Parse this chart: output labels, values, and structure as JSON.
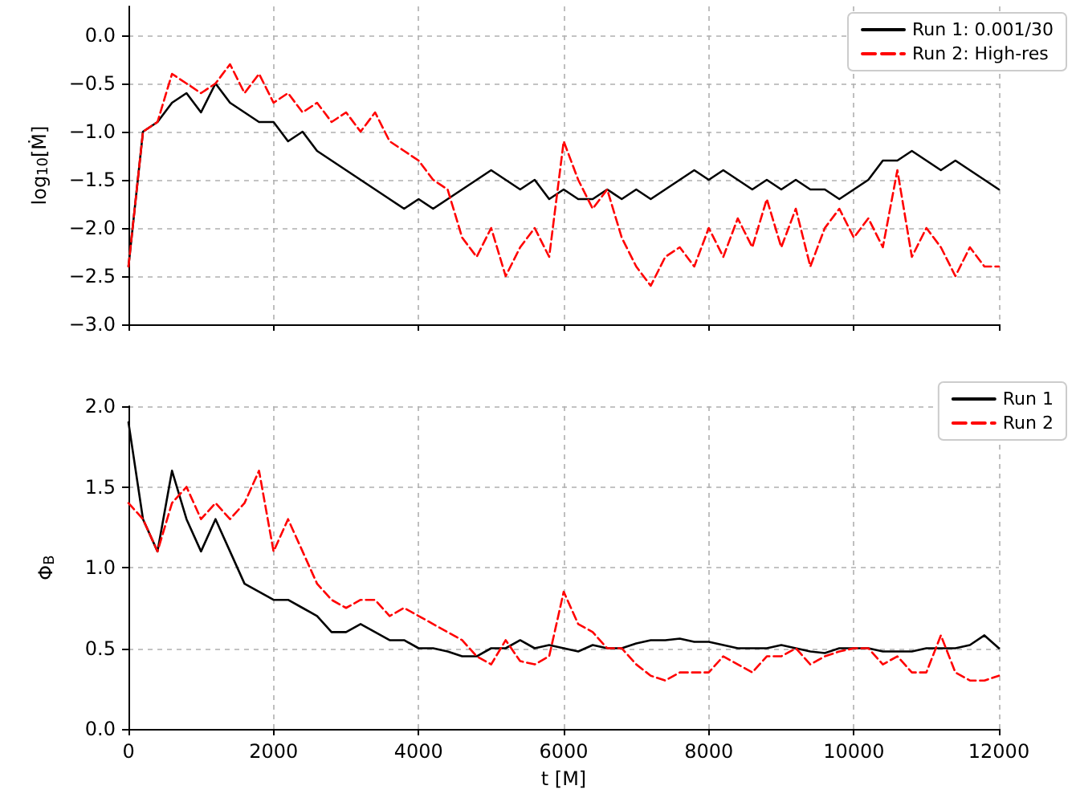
{
  "chart_data": [
    {
      "type": "line",
      "ylabel": "log$_{10}$[Ṁ]",
      "xlim": [
        0,
        12000
      ],
      "xticks": [
        0,
        2000,
        4000,
        6000,
        8000,
        10000,
        12000
      ],
      "ylim": [
        -3,
        0.3
      ],
      "yticks": [
        {
          "value": -3,
          "label": "−3.0"
        },
        {
          "value": -2.5,
          "label": "−2.5"
        },
        {
          "value": -2,
          "label": "−2.0"
        },
        {
          "value": -1.5,
          "label": "−1.5"
        },
        {
          "value": -1,
          "label": "−1.0"
        },
        {
          "value": -0.5,
          "label": "−0.5"
        },
        {
          "value": 0,
          "label": "0.0"
        }
      ],
      "tick_labels": "y",
      "grid": true,
      "legend": "top right",
      "marker": "none",
      "x": [
        0,
        200,
        400,
        600,
        800,
        1000,
        1200,
        1400,
        1600,
        1800,
        2000,
        2200,
        2400,
        2600,
        2800,
        3000,
        3200,
        3400,
        3600,
        3800,
        4000,
        4200,
        4400,
        4600,
        4800,
        5000,
        5200,
        5400,
        5600,
        5800,
        6000,
        6200,
        6400,
        6600,
        6800,
        7000,
        7200,
        7400,
        7600,
        7800,
        8000,
        8200,
        8400,
        8600,
        8800,
        9000,
        9200,
        9400,
        9600,
        9800,
        10000,
        10200,
        10400,
        10600,
        10800,
        11000,
        11200,
        11400,
        11600,
        11800,
        12000
      ],
      "series": [
        {
          "name": "Run 1: 0.001/30",
          "color": "#000000",
          "line_style": "solid",
          "values": [
            -2.4,
            -1.0,
            -0.9,
            -0.7,
            -0.6,
            -0.8,
            -0.5,
            -0.7,
            -0.8,
            -0.9,
            -0.9,
            -1.1,
            -1.0,
            -1.2,
            -1.3,
            -1.4,
            -1.5,
            -1.6,
            -1.7,
            -1.8,
            -1.7,
            -1.8,
            -1.7,
            -1.6,
            -1.5,
            -1.4,
            -1.5,
            -1.6,
            -1.5,
            -1.7,
            -1.6,
            -1.7,
            -1.7,
            -1.6,
            -1.7,
            -1.6,
            -1.7,
            -1.6,
            -1.5,
            -1.4,
            -1.5,
            -1.4,
            -1.5,
            -1.6,
            -1.5,
            -1.6,
            -1.5,
            -1.6,
            -1.6,
            -1.7,
            -1.6,
            -1.5,
            -1.3,
            -1.3,
            -1.2,
            -1.3,
            -1.4,
            -1.3,
            -1.4,
            -1.5,
            -1.6
          ]
        },
        {
          "name": "Run 2: High-res",
          "color": "#ff0000",
          "line_style": "dashed",
          "values": [
            -2.4,
            -1.0,
            -0.9,
            -0.4,
            -0.5,
            -0.6,
            -0.5,
            -0.3,
            -0.6,
            -0.4,
            -0.7,
            -0.6,
            -0.8,
            -0.7,
            -0.9,
            -0.8,
            -1.0,
            -0.8,
            -1.1,
            -1.2,
            -1.3,
            -1.5,
            -1.6,
            -2.1,
            -2.3,
            -2.0,
            -2.5,
            -2.2,
            -2.0,
            -2.3,
            -1.1,
            -1.5,
            -1.8,
            -1.6,
            -2.1,
            -2.4,
            -2.6,
            -2.3,
            -2.2,
            -2.4,
            -2.0,
            -2.3,
            -1.9,
            -2.2,
            -1.7,
            -2.2,
            -1.8,
            -2.4,
            -2.0,
            -1.8,
            -2.1,
            -1.9,
            -2.2,
            -1.4,
            -2.3,
            -2.0,
            -2.2,
            -2.5,
            -2.2,
            -2.4,
            -2.4
          ]
        }
      ]
    },
    {
      "type": "line",
      "xlabel": "t [M]",
      "ylabel": "Φ$_{B}$",
      "xlim": [
        0,
        12000
      ],
      "xticks": [
        0,
        2000,
        4000,
        6000,
        8000,
        10000,
        12000
      ],
      "ylim": [
        0,
        2
      ],
      "yticks": [
        {
          "value": 0,
          "label": "0.0"
        },
        {
          "value": 0.5,
          "label": "0.5"
        },
        {
          "value": 1,
          "label": "1.0"
        },
        {
          "value": 1.5,
          "label": "1.5"
        },
        {
          "value": 2,
          "label": "2.0"
        }
      ],
      "grid": true,
      "legend": "top right",
      "marker": "none",
      "x": [
        0,
        200,
        400,
        600,
        800,
        1000,
        1200,
        1400,
        1600,
        1800,
        2000,
        2200,
        2400,
        2600,
        2800,
        3000,
        3200,
        3400,
        3600,
        3800,
        4000,
        4200,
        4400,
        4600,
        4800,
        5000,
        5200,
        5400,
        5600,
        5800,
        6000,
        6200,
        6400,
        6600,
        6800,
        7000,
        7200,
        7400,
        7600,
        7800,
        8000,
        8200,
        8400,
        8600,
        8800,
        9000,
        9200,
        9400,
        9600,
        9800,
        10000,
        10200,
        10400,
        10600,
        10800,
        11000,
        11200,
        11400,
        11600,
        11800,
        12000
      ],
      "series": [
        {
          "name": "Run 1",
          "color": "#000000",
          "line_style": "solid",
          "values": [
            1.9,
            1.3,
            1.1,
            1.6,
            1.3,
            1.1,
            1.3,
            1.1,
            0.9,
            0.85,
            0.8,
            0.8,
            0.75,
            0.7,
            0.6,
            0.6,
            0.65,
            0.6,
            0.55,
            0.55,
            0.5,
            0.5,
            0.48,
            0.45,
            0.45,
            0.5,
            0.5,
            0.55,
            0.5,
            0.52,
            0.5,
            0.48,
            0.52,
            0.5,
            0.5,
            0.53,
            0.55,
            0.55,
            0.56,
            0.54,
            0.54,
            0.52,
            0.5,
            0.5,
            0.5,
            0.52,
            0.5,
            0.48,
            0.47,
            0.5,
            0.5,
            0.5,
            0.48,
            0.48,
            0.48,
            0.5,
            0.5,
            0.5,
            0.52,
            0.58,
            0.5
          ]
        },
        {
          "name": "Run 2",
          "color": "#ff0000",
          "line_style": "dashed",
          "values": [
            1.4,
            1.3,
            1.1,
            1.4,
            1.5,
            1.3,
            1.4,
            1.3,
            1.4,
            1.6,
            1.1,
            1.3,
            1.1,
            0.9,
            0.8,
            0.75,
            0.8,
            0.8,
            0.7,
            0.75,
            0.7,
            0.65,
            0.6,
            0.55,
            0.45,
            0.4,
            0.55,
            0.42,
            0.4,
            0.45,
            0.85,
            0.65,
            0.6,
            0.5,
            0.5,
            0.4,
            0.33,
            0.3,
            0.35,
            0.35,
            0.35,
            0.45,
            0.4,
            0.35,
            0.45,
            0.45,
            0.5,
            0.4,
            0.45,
            0.48,
            0.5,
            0.5,
            0.4,
            0.45,
            0.35,
            0.35,
            0.58,
            0.35,
            0.3,
            0.3,
            0.33
          ]
        }
      ]
    }
  ]
}
